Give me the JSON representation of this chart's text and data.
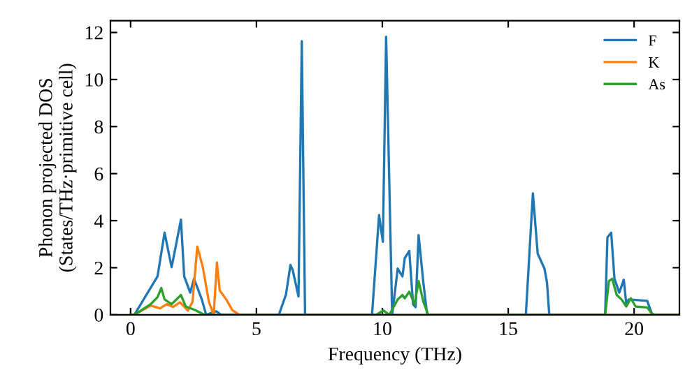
{
  "chart_data": {
    "type": "line",
    "xlabel": "Frequency (THz)",
    "ylabel": "Phonon projected DOS\n(States/THz·primitive cell)",
    "xlim": [
      -0.8,
      21.8
    ],
    "ylim": [
      0,
      12.5
    ],
    "xticks": [
      0,
      5,
      10,
      15,
      20
    ],
    "yticks": [
      0,
      2,
      4,
      6,
      8,
      10,
      12
    ],
    "grid": false,
    "legend": "top right",
    "marker": "none",
    "line_style": "solid",
    "series": [
      {
        "name": "F",
        "color": "#1f77b4",
        "x": [
          0,
          0.15,
          1.07,
          1.35,
          1.63,
          2.0,
          2.13,
          2.37,
          2.52,
          2.83,
          3.0,
          3.4,
          3.6,
          5.89,
          6.17,
          6.35,
          6.44,
          6.67,
          6.8,
          6.93,
          9.59,
          9.87,
          10.02,
          10.15,
          10.39,
          10.61,
          10.8,
          10.89,
          11.07,
          11.22,
          11.32,
          11.44,
          11.63,
          11.78,
          15.7,
          15.98,
          16.17,
          16.44,
          16.54,
          16.63,
          18.85,
          18.94,
          19.09,
          19.22,
          19.41,
          19.59,
          19.69,
          19.78,
          20.52,
          20.7,
          20.8,
          21.7
        ],
        "values": [
          0,
          0,
          1.63,
          3.49,
          2.02,
          4.04,
          1.63,
          0.94,
          1.53,
          0.65,
          0,
          0.15,
          0,
          0,
          0.85,
          2.12,
          1.9,
          0.78,
          11.63,
          0,
          0,
          4.24,
          3.1,
          11.82,
          0,
          1.96,
          1.63,
          2.41,
          2.71,
          0.45,
          0.32,
          3.39,
          1.35,
          0,
          0,
          5.16,
          2.6,
          1.96,
          1.37,
          0,
          0,
          3.29,
          3.49,
          1.53,
          0.94,
          1.49,
          0.45,
          0.65,
          0.59,
          0.06,
          0,
          0
        ]
      },
      {
        "name": "K",
        "color": "#ff7f0e",
        "x": [
          0,
          0.15,
          0.8,
          1.17,
          1.44,
          1.69,
          1.96,
          2.28,
          2.46,
          2.65,
          2.87,
          3.11,
          3.3,
          3.43,
          3.54,
          3.8,
          4.04,
          4.32,
          21.7
        ],
        "values": [
          0,
          0,
          0.39,
          0.27,
          0.45,
          0.33,
          0.53,
          0.18,
          0.55,
          2.9,
          2.02,
          0.55,
          0,
          2.22,
          1.04,
          0.65,
          0.2,
          0,
          0
        ]
      },
      {
        "name": "As",
        "color": "#2ca02c",
        "x": [
          0,
          0.15,
          0.8,
          1.07,
          1.22,
          1.35,
          1.63,
          2.0,
          2.19,
          2.56,
          2.93,
          9.76,
          10.04,
          10.28,
          10.61,
          10.8,
          10.89,
          11.07,
          11.28,
          11.44,
          11.63,
          11.82,
          18.85,
          19.0,
          19.13,
          19.31,
          19.5,
          19.69,
          19.87,
          20.06,
          20.52,
          20.7,
          20.8,
          21.7
        ],
        "values": [
          0,
          0,
          0.45,
          0.75,
          1.14,
          0.65,
          0.45,
          0.84,
          0.35,
          0.2,
          0,
          0,
          0.18,
          0,
          0.65,
          0.84,
          0.7,
          0.98,
          0.45,
          1.43,
          0.55,
          0,
          0,
          1.43,
          1.53,
          0.84,
          0.65,
          0.35,
          0.7,
          0.35,
          0.31,
          0.06,
          0,
          0
        ]
      }
    ]
  }
}
